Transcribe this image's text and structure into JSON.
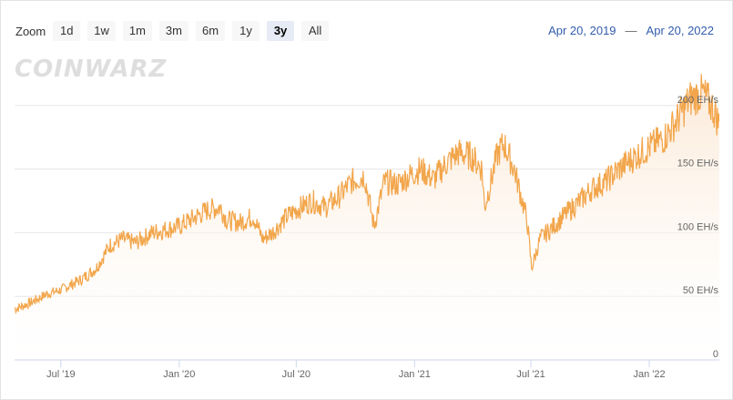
{
  "toolbar": {
    "zoom_label": "Zoom",
    "buttons": [
      "1d",
      "1w",
      "1m",
      "3m",
      "6m",
      "1y",
      "3y",
      "All"
    ],
    "active": "3y"
  },
  "range": {
    "from": "Apr 20, 2019",
    "separator": "—",
    "to": "Apr 20, 2022"
  },
  "watermark": "COINWARZ",
  "colors": {
    "line": "#f2a54a",
    "area_top": "#fbe7d3",
    "area_bottom": "#ffffff",
    "grid": "#e6e6e6",
    "axis": "#ccd6eb"
  },
  "chart_data": {
    "type": "area",
    "ylim": [
      0,
      240
    ],
    "yticks": [
      0,
      50,
      100,
      150,
      200
    ],
    "ytick_labels": [
      "0",
      "50 EH/s",
      "100 EH/s",
      "150 EH/s",
      "200 EH/s"
    ],
    "xticks": [
      "2019-07-01",
      "2020-01-01",
      "2020-07-01",
      "2021-01-01",
      "2021-07-01",
      "2022-01-01"
    ],
    "xtick_labels": [
      "Jul '19",
      "Jan '20",
      "Jul '20",
      "Jan '21",
      "Jul '21",
      "Jan '22"
    ],
    "x_range": [
      "2019-04-20",
      "2022-04-20"
    ],
    "series": [
      {
        "x": [
          "2019-04-20",
          "2019-05-15",
          "2019-06-10",
          "2019-07-01",
          "2019-08-01",
          "2019-08-25",
          "2019-09-15",
          "2019-10-05",
          "2019-10-25",
          "2019-11-20",
          "2019-12-15",
          "2020-01-01",
          "2020-01-25",
          "2020-02-15",
          "2020-03-05",
          "2020-03-15",
          "2020-04-05",
          "2020-04-25",
          "2020-05-10",
          "2020-05-25",
          "2020-06-15",
          "2020-07-01",
          "2020-07-25",
          "2020-08-15",
          "2020-09-05",
          "2020-09-25",
          "2020-10-15",
          "2020-10-30",
          "2020-11-15",
          "2020-12-05",
          "2020-12-25",
          "2021-01-10",
          "2021-01-31",
          "2021-02-20",
          "2021-03-10",
          "2021-03-31",
          "2021-04-16",
          "2021-04-20",
          "2021-05-10",
          "2021-05-20",
          "2021-06-05",
          "2021-06-15",
          "2021-06-25",
          "2021-07-02",
          "2021-07-15",
          "2021-08-05",
          "2021-08-25",
          "2021-09-15",
          "2021-10-05",
          "2021-10-25",
          "2021-11-15",
          "2021-12-05",
          "2021-12-25",
          "2022-01-10",
          "2022-01-25",
          "2022-02-15",
          "2022-03-05",
          "2022-03-25",
          "2022-04-10",
          "2022-04-20"
        ],
        "y": [
          40,
          45,
          52,
          55,
          63,
          72,
          90,
          95,
          92,
          100,
          103,
          105,
          112,
          118,
          120,
          110,
          108,
          113,
          95,
          100,
          112,
          118,
          125,
          120,
          128,
          140,
          145,
          105,
          140,
          138,
          145,
          150,
          142,
          155,
          163,
          160,
          150,
          120,
          162,
          170,
          150,
          130,
          110,
          72,
          95,
          105,
          115,
          125,
          135,
          140,
          150,
          158,
          165,
          170,
          175,
          190,
          205,
          210,
          198,
          185
        ]
      }
    ]
  }
}
